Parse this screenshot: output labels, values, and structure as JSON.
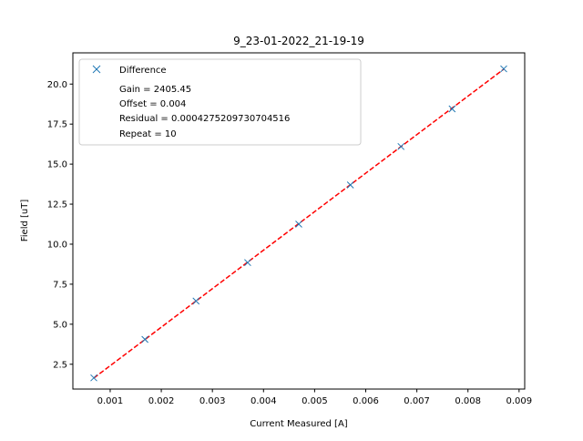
{
  "chart_data": {
    "type": "scatter",
    "title": "9_23-01-2022_21-19-19",
    "xlabel": "Current Measured [A]",
    "ylabel": "Field [uT]",
    "xlim": [
      0.00027,
      0.00911
    ],
    "ylim": [
      0.95,
      21.95
    ],
    "x_ticks": [
      0.001,
      0.002,
      0.003,
      0.004,
      0.005,
      0.006,
      0.007,
      0.008,
      0.009
    ],
    "x_tick_labels": [
      "0.001",
      "0.002",
      "0.003",
      "0.004",
      "0.005",
      "0.006",
      "0.007",
      "0.008",
      "0.009"
    ],
    "y_ticks": [
      2.5,
      5.0,
      7.5,
      10.0,
      12.5,
      15.0,
      17.5,
      20.0
    ],
    "y_tick_labels": [
      "2.5",
      "5.0",
      "7.5",
      "10.0",
      "12.5",
      "15.0",
      "17.5",
      "20.0"
    ],
    "grid": false,
    "legend_position": "top-left",
    "series": [
      {
        "name": "Difference",
        "marker": "x",
        "color": "#1f77b4",
        "x": [
          0.00068,
          0.00168,
          0.00268,
          0.00369,
          0.00469,
          0.0057,
          0.00669,
          0.00769,
          0.0087
        ],
        "y": [
          1.65,
          4.05,
          6.45,
          8.85,
          11.25,
          13.7,
          16.1,
          18.45,
          20.95
        ]
      }
    ],
    "fit_line": {
      "color": "#ff0000",
      "style": "dashed",
      "x": [
        0.00068,
        0.0087
      ],
      "y": [
        1.64,
        20.93
      ]
    },
    "annotations": [
      "Gain = 2405.45",
      "Offset = 0.004",
      "Residual = 0.0004275209730704516",
      "Repeat = 10"
    ]
  }
}
